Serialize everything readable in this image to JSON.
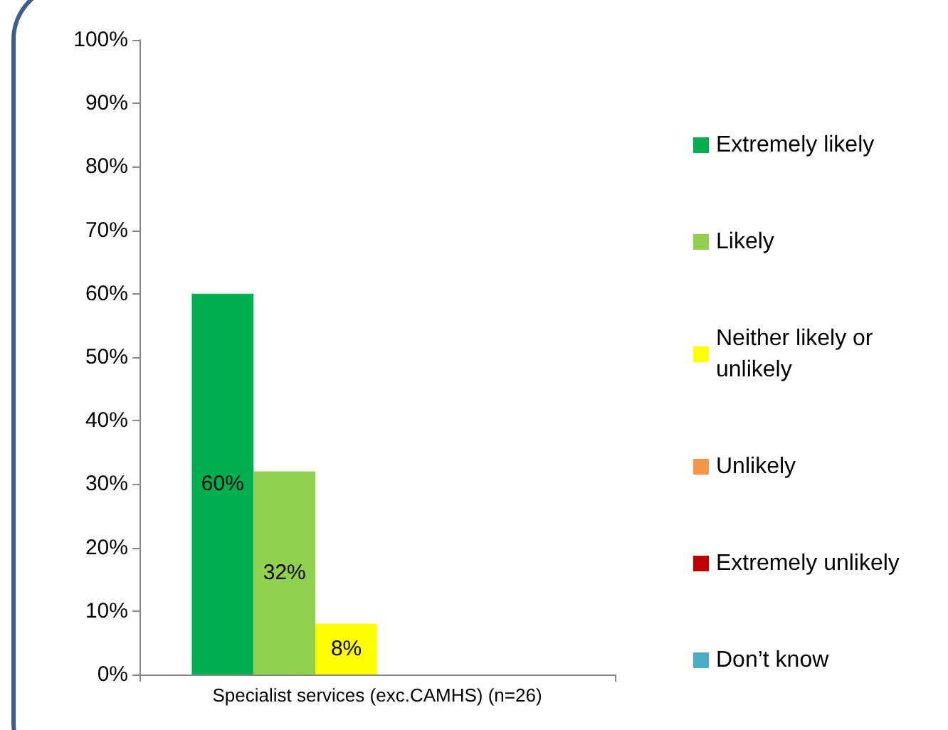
{
  "chart_data": {
    "type": "bar",
    "categories": [
      "Specialist services (exc.CAMHS) (n=26)"
    ],
    "series": [
      {
        "name": "Extremely likely",
        "color": "#00b050",
        "values": [
          60
        ],
        "value_labels": [
          "60%"
        ]
      },
      {
        "name": "Likely",
        "color": "#92d050",
        "values": [
          32
        ],
        "value_labels": [
          "32%"
        ]
      },
      {
        "name": "Neither likely or unlikely",
        "color": "#ffff00",
        "values": [
          8
        ],
        "value_labels": [
          "8%"
        ]
      },
      {
        "name": "Unlikely",
        "color": "#f79646",
        "values": [
          0
        ],
        "value_labels": [
          null
        ]
      },
      {
        "name": "Extremely unlikely",
        "color": "#c00000",
        "values": [
          0
        ],
        "value_labels": [
          null
        ]
      },
      {
        "name": "Don’t know",
        "color": "#4bacc6",
        "values": [
          0
        ],
        "value_labels": [
          null
        ]
      }
    ],
    "ylim": [
      0,
      100
    ],
    "yticks": [
      {
        "value": 0,
        "label": "0%"
      },
      {
        "value": 10,
        "label": "10%"
      },
      {
        "value": 20,
        "label": "20%"
      },
      {
        "value": 30,
        "label": "30%"
      },
      {
        "value": 40,
        "label": "40%"
      },
      {
        "value": 50,
        "label": "50%"
      },
      {
        "value": 60,
        "label": "60%"
      },
      {
        "value": 70,
        "label": "70%"
      },
      {
        "value": 80,
        "label": "80%"
      },
      {
        "value": 90,
        "label": "90%"
      },
      {
        "value": 100,
        "label": "100%"
      }
    ],
    "grid": false,
    "legend": "right"
  }
}
